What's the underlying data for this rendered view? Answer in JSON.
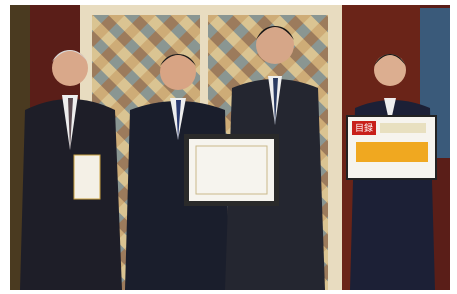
{
  "sign": {
    "title": "目録"
  }
}
